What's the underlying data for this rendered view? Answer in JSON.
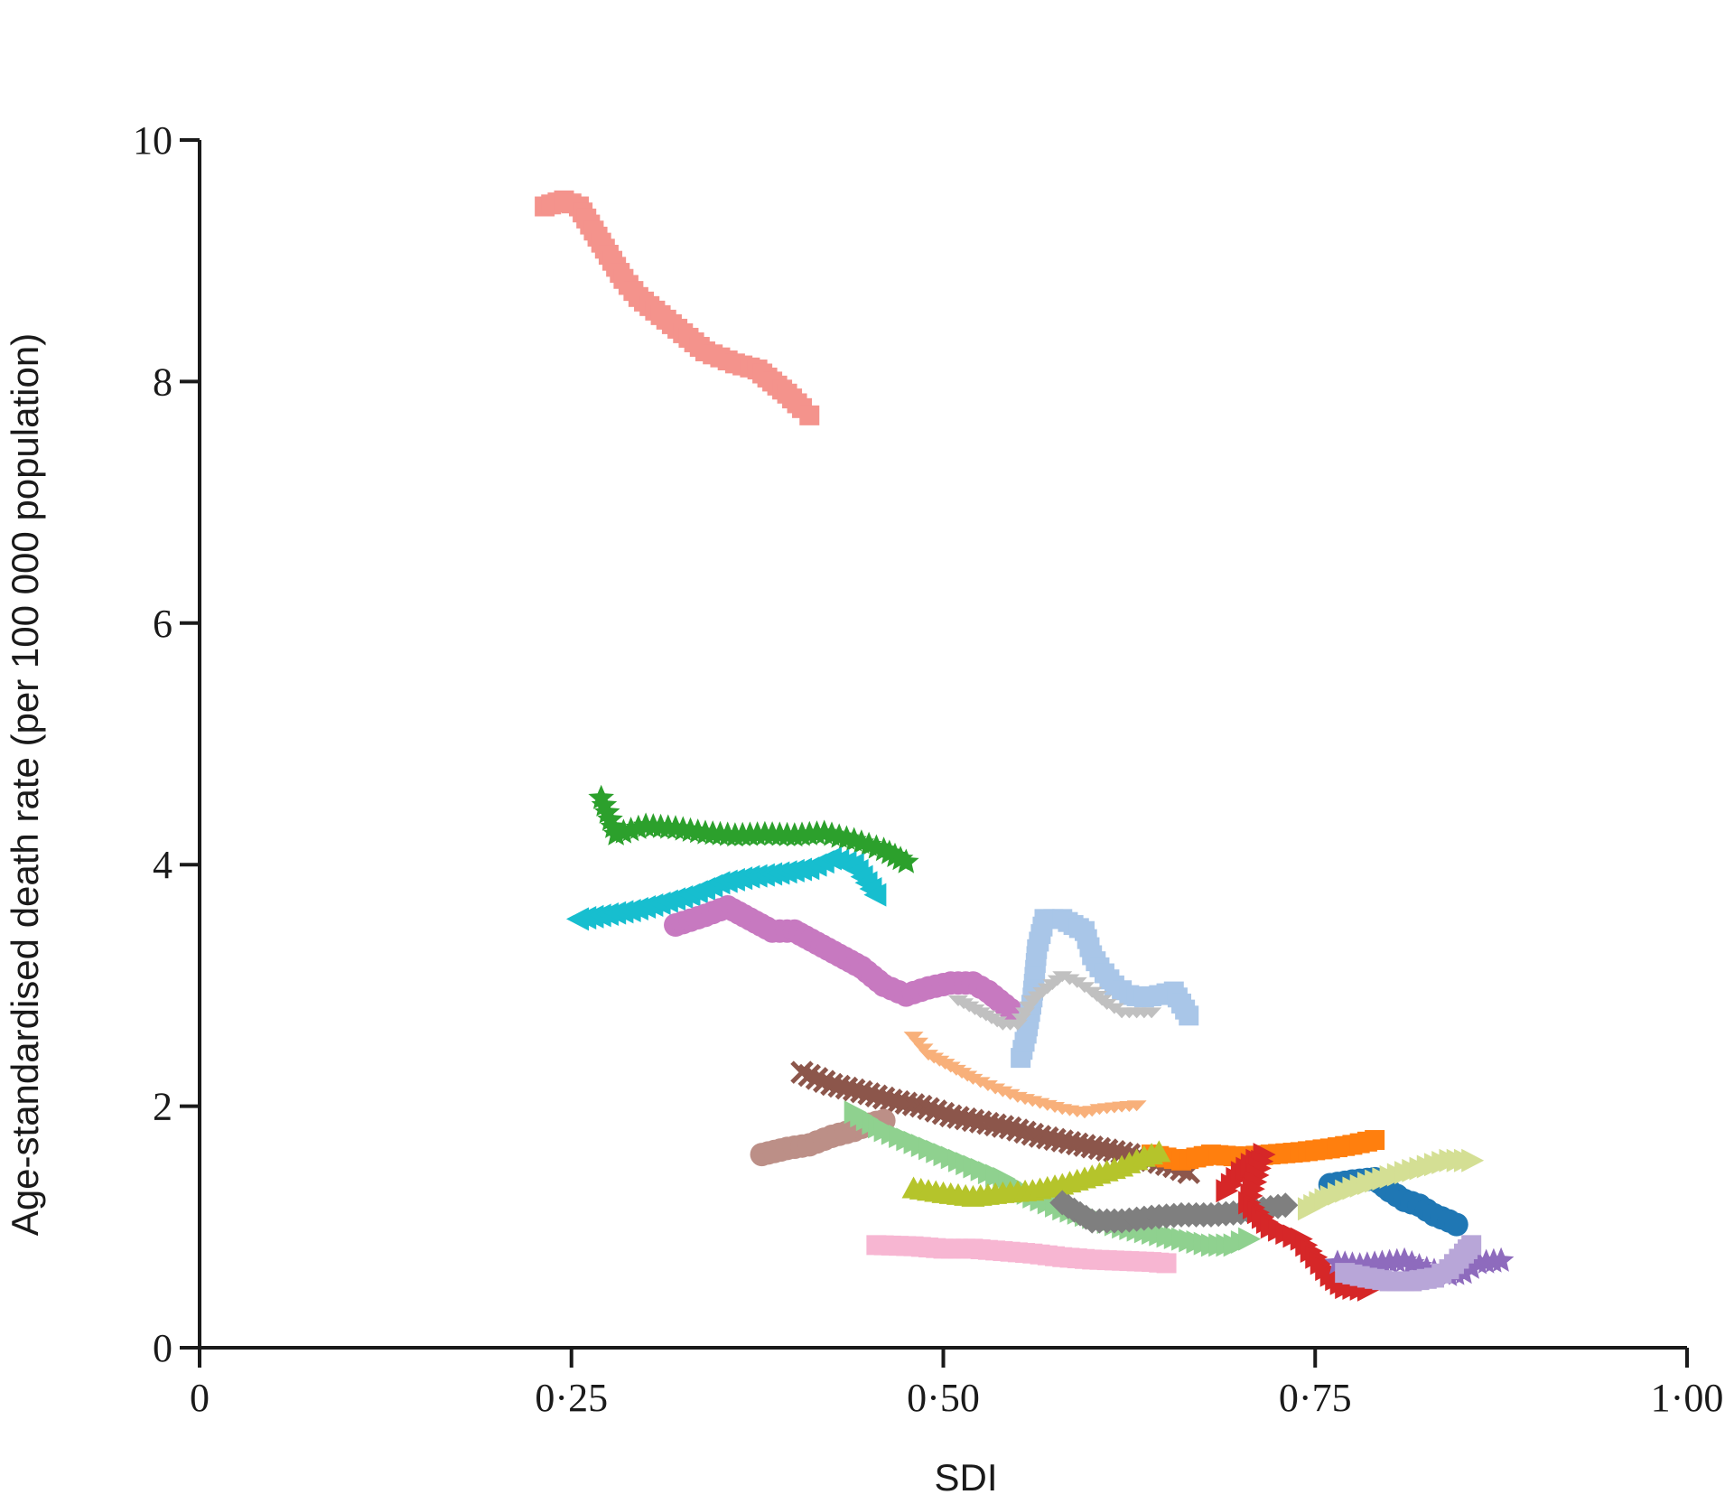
{
  "chart_data": {
    "type": "scatter",
    "title": "",
    "xlabel": "SDI",
    "ylabel": "Age-standardised death rate (per 100 000 population)",
    "xlim": [
      0,
      1
    ],
    "ylim": [
      0,
      10
    ],
    "grid": false,
    "x_ticks": [
      {
        "value": 0,
        "label": "0"
      },
      {
        "value": 0.25,
        "label": "0·25"
      },
      {
        "value": 0.5,
        "label": "0·50"
      },
      {
        "value": 0.75,
        "label": "0·75"
      },
      {
        "value": 1.0,
        "label": "1·00"
      }
    ],
    "y_ticks": [
      {
        "value": 0,
        "label": "0"
      },
      {
        "value": 2,
        "label": "2"
      },
      {
        "value": 4,
        "label": "4"
      },
      {
        "value": 6,
        "label": "6"
      },
      {
        "value": 8,
        "label": "8"
      },
      {
        "value": 10,
        "label": "10"
      }
    ],
    "series": [
      {
        "color": "#f4938c",
        "marker": "square",
        "points": [
          [
            0.232,
            9.45
          ],
          [
            0.245,
            9.5
          ],
          [
            0.255,
            9.45
          ],
          [
            0.265,
            9.25
          ],
          [
            0.275,
            9.05
          ],
          [
            0.285,
            8.85
          ],
          [
            0.295,
            8.7
          ],
          [
            0.31,
            8.55
          ],
          [
            0.325,
            8.4
          ],
          [
            0.34,
            8.25
          ],
          [
            0.36,
            8.15
          ],
          [
            0.375,
            8.1
          ],
          [
            0.385,
            8.0
          ],
          [
            0.395,
            7.9
          ],
          [
            0.405,
            7.78
          ],
          [
            0.41,
            7.72
          ]
        ]
      },
      {
        "color": "#2ca02c",
        "marker": "star",
        "points": [
          [
            0.27,
            4.55
          ],
          [
            0.28,
            4.25
          ],
          [
            0.3,
            4.32
          ],
          [
            0.32,
            4.3
          ],
          [
            0.34,
            4.26
          ],
          [
            0.36,
            4.24
          ],
          [
            0.38,
            4.25
          ],
          [
            0.4,
            4.24
          ],
          [
            0.42,
            4.26
          ],
          [
            0.44,
            4.2
          ],
          [
            0.46,
            4.12
          ],
          [
            0.475,
            4.02
          ]
        ]
      },
      {
        "color": "#17becf",
        "marker": "triangle-left",
        "points": [
          [
            0.255,
            3.55
          ],
          [
            0.27,
            3.58
          ],
          [
            0.29,
            3.62
          ],
          [
            0.31,
            3.68
          ],
          [
            0.33,
            3.75
          ],
          [
            0.35,
            3.85
          ],
          [
            0.37,
            3.9
          ],
          [
            0.39,
            3.93
          ],
          [
            0.41,
            3.97
          ],
          [
            0.425,
            4.05
          ],
          [
            0.44,
            4.0
          ],
          [
            0.455,
            3.75
          ]
        ]
      },
      {
        "color": "#c779c0",
        "marker": "circle",
        "points": [
          [
            0.32,
            3.5
          ],
          [
            0.34,
            3.58
          ],
          [
            0.355,
            3.65
          ],
          [
            0.37,
            3.55
          ],
          [
            0.385,
            3.45
          ],
          [
            0.4,
            3.45
          ],
          [
            0.415,
            3.35
          ],
          [
            0.43,
            3.25
          ],
          [
            0.445,
            3.15
          ],
          [
            0.46,
            3.0
          ],
          [
            0.475,
            2.92
          ],
          [
            0.49,
            2.98
          ],
          [
            0.505,
            3.02
          ],
          [
            0.52,
            3.02
          ],
          [
            0.53,
            2.95
          ],
          [
            0.545,
            2.8
          ]
        ]
      },
      {
        "color": "#a9c6e8",
        "marker": "square",
        "points": [
          [
            0.552,
            2.4
          ],
          [
            0.556,
            2.6
          ],
          [
            0.56,
            2.9
          ],
          [
            0.563,
            3.3
          ],
          [
            0.568,
            3.55
          ],
          [
            0.58,
            3.55
          ],
          [
            0.595,
            3.45
          ],
          [
            0.6,
            3.25
          ],
          [
            0.605,
            3.15
          ],
          [
            0.615,
            3.0
          ],
          [
            0.625,
            2.92
          ],
          [
            0.635,
            2.9
          ],
          [
            0.645,
            2.92
          ],
          [
            0.655,
            2.95
          ],
          [
            0.66,
            2.85
          ],
          [
            0.665,
            2.75
          ]
        ]
      },
      {
        "color": "#c0c0c0",
        "marker": "tri-down",
        "points": [
          [
            0.51,
            2.85
          ],
          [
            0.525,
            2.75
          ],
          [
            0.54,
            2.65
          ],
          [
            0.55,
            2.65
          ],
          [
            0.56,
            2.85
          ],
          [
            0.57,
            2.95
          ],
          [
            0.58,
            3.05
          ],
          [
            0.59,
            3.0
          ],
          [
            0.6,
            2.92
          ],
          [
            0.61,
            2.82
          ],
          [
            0.62,
            2.75
          ],
          [
            0.63,
            2.75
          ],
          [
            0.64,
            2.75
          ]
        ]
      },
      {
        "color": "#f8b07a",
        "marker": "tri-down",
        "points": [
          [
            0.48,
            2.55
          ],
          [
            0.49,
            2.4
          ],
          [
            0.505,
            2.3
          ],
          [
            0.52,
            2.2
          ],
          [
            0.535,
            2.12
          ],
          [
            0.55,
            2.05
          ],
          [
            0.565,
            2.0
          ],
          [
            0.58,
            1.95
          ],
          [
            0.595,
            1.92
          ],
          [
            0.605,
            1.95
          ],
          [
            0.62,
            1.97
          ],
          [
            0.63,
            1.98
          ]
        ]
      },
      {
        "color": "#8c564b",
        "marker": "x",
        "points": [
          [
            0.405,
            2.28
          ],
          [
            0.425,
            2.18
          ],
          [
            0.445,
            2.12
          ],
          [
            0.465,
            2.05
          ],
          [
            0.485,
            2.0
          ],
          [
            0.505,
            1.92
          ],
          [
            0.525,
            1.87
          ],
          [
            0.545,
            1.82
          ],
          [
            0.565,
            1.75
          ],
          [
            0.585,
            1.7
          ],
          [
            0.605,
            1.65
          ],
          [
            0.625,
            1.6
          ],
          [
            0.64,
            1.55
          ],
          [
            0.655,
            1.5
          ],
          [
            0.665,
            1.45
          ]
        ]
      },
      {
        "color": "#bc8f87",
        "marker": "circle",
        "points": [
          [
            0.378,
            1.6
          ],
          [
            0.395,
            1.65
          ],
          [
            0.41,
            1.68
          ],
          [
            0.425,
            1.75
          ],
          [
            0.44,
            1.8
          ],
          [
            0.45,
            1.85
          ],
          [
            0.46,
            1.88
          ]
        ]
      },
      {
        "color": "#8fd18f",
        "marker": "triangle-right",
        "points": [
          [
            0.44,
            1.95
          ],
          [
            0.46,
            1.8
          ],
          [
            0.48,
            1.7
          ],
          [
            0.5,
            1.6
          ],
          [
            0.52,
            1.5
          ],
          [
            0.54,
            1.4
          ],
          [
            0.56,
            1.25
          ],
          [
            0.58,
            1.15
          ],
          [
            0.6,
            1.08
          ],
          [
            0.62,
            1.0
          ],
          [
            0.64,
            0.95
          ],
          [
            0.66,
            0.9
          ],
          [
            0.68,
            0.85
          ],
          [
            0.695,
            0.85
          ],
          [
            0.705,
            0.9
          ]
        ]
      },
      {
        "color": "#ff7f0e",
        "marker": "square",
        "points": [
          [
            0.64,
            1.6
          ],
          [
            0.66,
            1.55
          ],
          [
            0.68,
            1.6
          ],
          [
            0.7,
            1.58
          ],
          [
            0.72,
            1.6
          ],
          [
            0.74,
            1.62
          ],
          [
            0.76,
            1.65
          ],
          [
            0.775,
            1.68
          ],
          [
            0.79,
            1.72
          ]
        ]
      },
      {
        "color": "#b5c42b",
        "marker": "triangle-up",
        "points": [
          [
            0.48,
            1.32
          ],
          [
            0.5,
            1.28
          ],
          [
            0.52,
            1.25
          ],
          [
            0.54,
            1.28
          ],
          [
            0.56,
            1.3
          ],
          [
            0.58,
            1.35
          ],
          [
            0.6,
            1.42
          ],
          [
            0.62,
            1.5
          ],
          [
            0.635,
            1.58
          ],
          [
            0.645,
            1.62
          ]
        ]
      },
      {
        "color": "#7f7f7f",
        "marker": "diamond",
        "points": [
          [
            0.58,
            1.2
          ],
          [
            0.6,
            1.05
          ],
          [
            0.62,
            1.05
          ],
          [
            0.64,
            1.08
          ],
          [
            0.66,
            1.1
          ],
          [
            0.68,
            1.1
          ],
          [
            0.7,
            1.12
          ],
          [
            0.715,
            1.15
          ],
          [
            0.73,
            1.18
          ]
        ]
      },
      {
        "color": "#d62728",
        "marker": "triangle-right",
        "points": [
          [
            0.69,
            1.3
          ],
          [
            0.7,
            1.45
          ],
          [
            0.71,
            1.55
          ],
          [
            0.715,
            1.6
          ],
          [
            0.705,
            1.2
          ],
          [
            0.72,
            1.0
          ],
          [
            0.74,
            0.9
          ],
          [
            0.75,
            0.75
          ],
          [
            0.76,
            0.6
          ],
          [
            0.77,
            0.5
          ],
          [
            0.785,
            0.48
          ]
        ]
      },
      {
        "color": "#1f77b4",
        "marker": "circle",
        "points": [
          [
            0.76,
            1.35
          ],
          [
            0.775,
            1.38
          ],
          [
            0.79,
            1.4
          ],
          [
            0.8,
            1.3
          ],
          [
            0.81,
            1.22
          ],
          [
            0.82,
            1.18
          ],
          [
            0.83,
            1.1
          ],
          [
            0.84,
            1.05
          ],
          [
            0.845,
            1.02
          ]
        ]
      },
      {
        "color": "#d4df94",
        "marker": "triangle-right",
        "points": [
          [
            0.745,
            1.15
          ],
          [
            0.76,
            1.25
          ],
          [
            0.775,
            1.32
          ],
          [
            0.79,
            1.38
          ],
          [
            0.81,
            1.45
          ],
          [
            0.825,
            1.5
          ],
          [
            0.84,
            1.55
          ],
          [
            0.855,
            1.55
          ]
        ]
      },
      {
        "color": "#8e6bbd",
        "marker": "star",
        "points": [
          [
            0.765,
            0.7
          ],
          [
            0.78,
            0.68
          ],
          [
            0.795,
            0.7
          ],
          [
            0.81,
            0.72
          ],
          [
            0.825,
            0.65
          ],
          [
            0.84,
            0.6
          ],
          [
            0.85,
            0.62
          ],
          [
            0.86,
            0.7
          ],
          [
            0.875,
            0.72
          ]
        ]
      },
      {
        "color": "#b8a6d8",
        "marker": "square",
        "points": [
          [
            0.77,
            0.62
          ],
          [
            0.785,
            0.58
          ],
          [
            0.8,
            0.55
          ],
          [
            0.815,
            0.55
          ],
          [
            0.83,
            0.58
          ],
          [
            0.84,
            0.65
          ],
          [
            0.85,
            0.78
          ],
          [
            0.855,
            0.85
          ]
        ]
      },
      {
        "color": "#f7b6d2",
        "marker": "square",
        "points": [
          [
            0.455,
            0.85
          ],
          [
            0.48,
            0.84
          ],
          [
            0.5,
            0.82
          ],
          [
            0.52,
            0.82
          ],
          [
            0.54,
            0.8
          ],
          [
            0.56,
            0.78
          ],
          [
            0.58,
            0.75
          ],
          [
            0.6,
            0.73
          ],
          [
            0.62,
            0.72
          ],
          [
            0.64,
            0.71
          ],
          [
            0.65,
            0.7
          ]
        ]
      }
    ]
  }
}
